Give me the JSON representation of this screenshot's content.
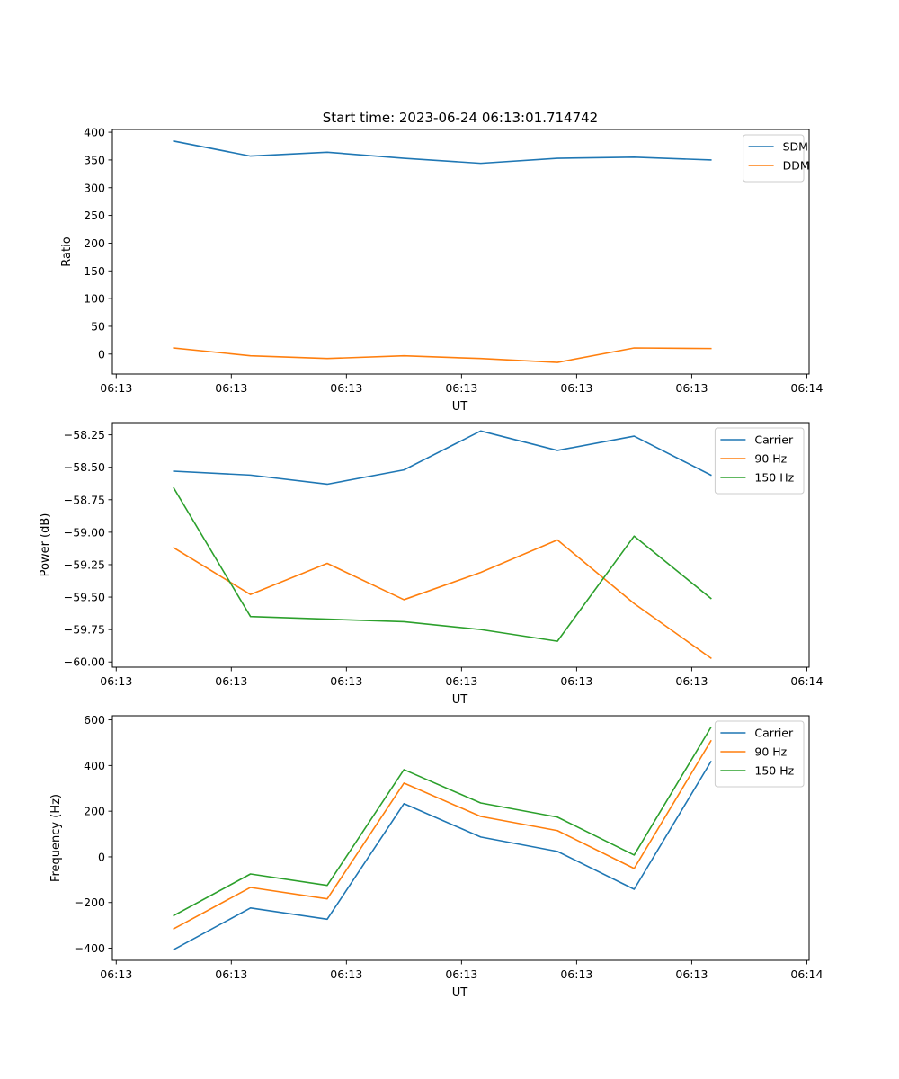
{
  "figure": {
    "title": "Start time: 2023-06-24 06:13:01.714742"
  },
  "chart_data": [
    {
      "type": "line",
      "title": "Start time: 2023-06-24 06:13:01.714742",
      "xlabel": "UT",
      "ylabel": "Ratio",
      "x": [
        1,
        2,
        3,
        4,
        5,
        6,
        7,
        8
      ],
      "x_tick_values": [
        0.25,
        1.75,
        3.25,
        4.75,
        6.25,
        7.75,
        9.25
      ],
      "x_tick_labels": [
        "06:13",
        "06:13",
        "06:13",
        "06:13",
        "06:13",
        "06:13",
        "06:14"
      ],
      "xlim": [
        0.2,
        9.28
      ],
      "ylim": [
        -36,
        405
      ],
      "y_ticks": [
        0,
        50,
        100,
        150,
        200,
        250,
        300,
        350,
        400
      ],
      "y_tick_labels": [
        "0",
        "50",
        "100",
        "150",
        "200",
        "250",
        "300",
        "350",
        "400"
      ],
      "legend_position": "top-right",
      "series": [
        {
          "name": "SDM",
          "color": "#1f77b4",
          "values": [
            384,
            357,
            364,
            353,
            344,
            353,
            355,
            350
          ]
        },
        {
          "name": "DDM",
          "color": "#ff7f0e",
          "values": [
            11,
            -3,
            -8,
            -3,
            -8,
            -15,
            11,
            10
          ]
        }
      ]
    },
    {
      "type": "line",
      "title": "",
      "xlabel": "UT",
      "ylabel": "Power (dB)",
      "x": [
        1,
        2,
        3,
        4,
        5,
        6,
        7,
        8
      ],
      "x_tick_values": [
        0.25,
        1.75,
        3.25,
        4.75,
        6.25,
        7.75,
        9.25
      ],
      "x_tick_labels": [
        "06:13",
        "06:13",
        "06:13",
        "06:13",
        "06:13",
        "06:13",
        "06:14"
      ],
      "xlim": [
        0.2,
        9.28
      ],
      "ylim": [
        -60.04,
        -58.1556
      ],
      "y_ticks": [
        -60.0,
        -59.75,
        -59.5,
        -59.25,
        -59.0,
        -58.75,
        -58.5,
        -58.25
      ],
      "y_tick_labels": [
        "−60.00",
        "−59.75",
        "−59.50",
        "−59.25",
        "−59.00",
        "−58.75",
        "−58.50",
        "−58.25"
      ],
      "legend_position": "top-right",
      "series": [
        {
          "name": "Carrier",
          "color": "#1f77b4",
          "values": [
            -58.53,
            -58.56,
            -58.63,
            -58.52,
            -58.22,
            -58.37,
            -58.26,
            -58.56
          ]
        },
        {
          "name": "90 Hz",
          "color": "#ff7f0e",
          "values": [
            -59.12,
            -59.48,
            -59.24,
            -59.52,
            -59.31,
            -59.06,
            -59.55,
            -59.97
          ]
        },
        {
          "name": "150 Hz",
          "color": "#2ca02c",
          "values": [
            -58.66,
            -59.65,
            -59.67,
            -59.69,
            -59.75,
            -59.84,
            -59.03,
            -59.51
          ]
        }
      ]
    },
    {
      "type": "line",
      "title": "",
      "xlabel": "UT",
      "ylabel": "Frequency (Hz)",
      "x": [
        1,
        2,
        3,
        4,
        5,
        6,
        7,
        8
      ],
      "x_tick_values": [
        0.25,
        1.75,
        3.25,
        4.75,
        6.25,
        7.75,
        9.25
      ],
      "x_tick_labels": [
        "06:13",
        "06:13",
        "06:13",
        "06:13",
        "06:13",
        "06:13",
        "06:14"
      ],
      "xlim": [
        0.2,
        9.28
      ],
      "ylim": [
        -453,
        618
      ],
      "y_ticks": [
        -400,
        -200,
        0,
        200,
        400,
        600
      ],
      "y_tick_labels": [
        "−400",
        "−200",
        "0",
        "200",
        "400",
        "600"
      ],
      "legend_position": "top-right",
      "series": [
        {
          "name": "Carrier",
          "color": "#1f77b4",
          "values": [
            -406,
            -224,
            -273,
            233,
            87,
            24,
            -142,
            417
          ]
        },
        {
          "name": "90 Hz",
          "color": "#ff7f0e",
          "values": [
            -315,
            -134,
            -184,
            323,
            177,
            115,
            -51,
            508
          ]
        },
        {
          "name": "150 Hz",
          "color": "#2ca02c",
          "values": [
            -257,
            -75,
            -125,
            382,
            236,
            174,
            8,
            567
          ]
        }
      ]
    }
  ]
}
